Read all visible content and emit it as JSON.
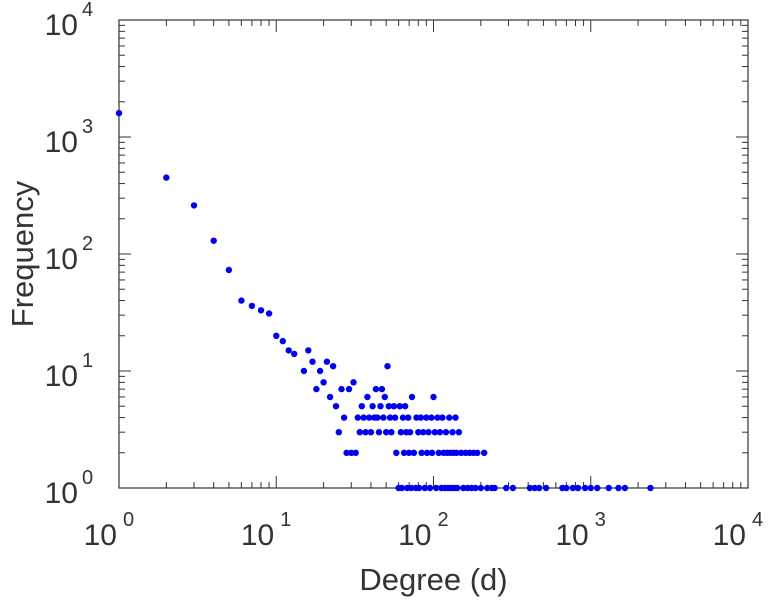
{
  "chart_data": {
    "type": "scatter",
    "title": "",
    "xlabel": "Degree (d)",
    "ylabel": "Frequency",
    "xscale": "log",
    "yscale": "log",
    "xlim": [
      1,
      10000
    ],
    "ylim": [
      1,
      10000
    ],
    "grid": false,
    "marker_color": "#0000ee",
    "x_ticks": [
      {
        "base": "10",
        "exp": "0",
        "value": 1
      },
      {
        "base": "10",
        "exp": "1",
        "value": 10
      },
      {
        "base": "10",
        "exp": "2",
        "value": 100
      },
      {
        "base": "10",
        "exp": "3",
        "value": 1000
      },
      {
        "base": "10",
        "exp": "4",
        "value": 10000
      }
    ],
    "y_ticks": [
      {
        "base": "10",
        "exp": "0",
        "value": 1
      },
      {
        "base": "10",
        "exp": "1",
        "value": 10
      },
      {
        "base": "10",
        "exp": "2",
        "value": 100
      },
      {
        "base": "10",
        "exp": "3",
        "value": 1000
      },
      {
        "base": "10",
        "exp": "4",
        "value": 10000
      }
    ],
    "points": [
      [
        1,
        1600
      ],
      [
        2,
        450
      ],
      [
        3,
        260
      ],
      [
        4,
        130
      ],
      [
        5,
        73
      ],
      [
        6,
        40
      ],
      [
        7,
        36
      ],
      [
        8,
        33
      ],
      [
        9,
        31
      ],
      [
        10,
        20
      ],
      [
        11,
        18
      ],
      [
        12,
        15
      ],
      [
        13,
        14
      ],
      [
        15,
        10
      ],
      [
        16,
        15
      ],
      [
        17,
        12
      ],
      [
        18,
        7
      ],
      [
        19,
        10
      ],
      [
        20,
        8
      ],
      [
        21,
        12
      ],
      [
        22,
        6
      ],
      [
        23,
        11
      ],
      [
        24,
        5
      ],
      [
        25,
        3
      ],
      [
        26,
        7
      ],
      [
        27,
        4
      ],
      [
        28,
        2
      ],
      [
        29,
        7
      ],
      [
        30,
        2
      ],
      [
        31,
        8
      ],
      [
        32,
        2
      ],
      [
        33,
        4
      ],
      [
        34,
        3
      ],
      [
        35,
        5
      ],
      [
        36,
        4
      ],
      [
        37,
        3
      ],
      [
        38,
        6
      ],
      [
        39,
        4
      ],
      [
        40,
        3
      ],
      [
        41,
        5
      ],
      [
        42,
        4
      ],
      [
        43,
        7
      ],
      [
        44,
        4
      ],
      [
        45,
        3
      ],
      [
        46,
        5
      ],
      [
        47,
        7
      ],
      [
        48,
        4
      ],
      [
        49,
        6
      ],
      [
        50,
        3
      ],
      [
        51,
        11
      ],
      [
        52,
        5
      ],
      [
        53,
        4
      ],
      [
        54,
        3
      ],
      [
        56,
        5
      ],
      [
        57,
        4
      ],
      [
        58,
        2
      ],
      [
        60,
        1
      ],
      [
        61,
        5
      ],
      [
        62,
        3
      ],
      [
        63,
        1
      ],
      [
        64,
        4
      ],
      [
        65,
        2
      ],
      [
        66,
        5
      ],
      [
        67,
        3
      ],
      [
        68,
        1
      ],
      [
        69,
        4
      ],
      [
        70,
        2
      ],
      [
        71,
        3
      ],
      [
        72,
        1
      ],
      [
        73,
        6
      ],
      [
        75,
        2
      ],
      [
        77,
        1
      ],
      [
        78,
        4
      ],
      [
        80,
        3
      ],
      [
        81,
        1
      ],
      [
        83,
        4
      ],
      [
        84,
        2
      ],
      [
        86,
        3
      ],
      [
        88,
        1
      ],
      [
        90,
        4
      ],
      [
        91,
        2
      ],
      [
        93,
        3
      ],
      [
        95,
        1
      ],
      [
        97,
        4
      ],
      [
        98,
        2
      ],
      [
        100,
        6
      ],
      [
        102,
        3
      ],
      [
        104,
        1
      ],
      [
        106,
        4
      ],
      [
        108,
        2
      ],
      [
        110,
        3
      ],
      [
        112,
        1
      ],
      [
        114,
        4
      ],
      [
        116,
        2
      ],
      [
        118,
        1
      ],
      [
        120,
        3
      ],
      [
        122,
        2
      ],
      [
        124,
        1
      ],
      [
        126,
        4
      ],
      [
        128,
        2
      ],
      [
        130,
        1
      ],
      [
        132,
        3
      ],
      [
        134,
        2
      ],
      [
        136,
        1
      ],
      [
        138,
        4
      ],
      [
        140,
        2
      ],
      [
        142,
        1
      ],
      [
        145,
        3
      ],
      [
        150,
        2
      ],
      [
        155,
        1
      ],
      [
        160,
        2
      ],
      [
        165,
        1
      ],
      [
        170,
        2
      ],
      [
        175,
        1
      ],
      [
        180,
        2
      ],
      [
        185,
        1
      ],
      [
        190,
        2
      ],
      [
        200,
        1
      ],
      [
        210,
        2
      ],
      [
        220,
        1
      ],
      [
        235,
        1
      ],
      [
        245,
        1
      ],
      [
        290,
        1
      ],
      [
        320,
        1
      ],
      [
        410,
        1
      ],
      [
        440,
        1
      ],
      [
        470,
        1
      ],
      [
        520,
        1
      ],
      [
        660,
        1
      ],
      [
        700,
        1
      ],
      [
        770,
        1
      ],
      [
        830,
        1
      ],
      [
        920,
        1
      ],
      [
        1000,
        1
      ],
      [
        1100,
        1
      ],
      [
        1300,
        1
      ],
      [
        1500,
        1
      ],
      [
        1650,
        1
      ],
      [
        2400,
        1
      ]
    ]
  }
}
